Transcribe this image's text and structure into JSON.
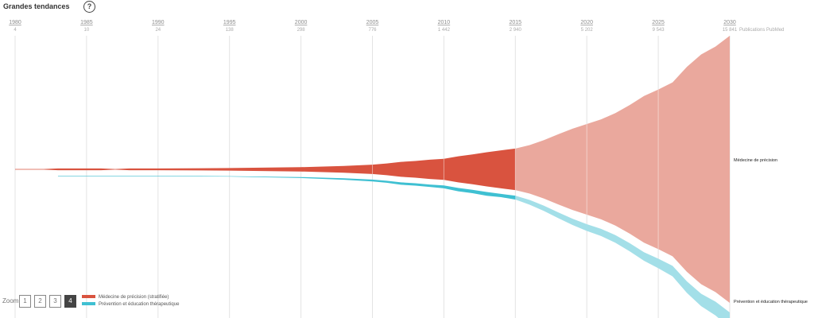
{
  "header": {
    "title": "Grandes tendances",
    "help_label": "?"
  },
  "zoom": {
    "label": "Zoom",
    "levels": [
      "1",
      "2",
      "3",
      "4"
    ],
    "active": "4"
  },
  "colors": {
    "precision_hist": "#d9533f",
    "precision_proj": "#eaa89d",
    "prevention_hist": "#3fc0d2",
    "prevention_proj": "#a3dfe8",
    "grid": "#e3e3e3",
    "tick_text": "#8c8c8c"
  },
  "chart_data": {
    "type": "area",
    "title": "Grandes tendances",
    "xlabel": "",
    "ylabel": "Publications PubMed",
    "xlim": [
      1980,
      2030
    ],
    "projection_start": 2015,
    "ticks": [
      {
        "year": "1980",
        "count": "4"
      },
      {
        "year": "1985",
        "count": "10"
      },
      {
        "year": "1990",
        "count": "24"
      },
      {
        "year": "1995",
        "count": "138"
      },
      {
        "year": "2000",
        "count": "298"
      },
      {
        "year": "2005",
        "count": "776"
      },
      {
        "year": "2010",
        "count": "1 442"
      },
      {
        "year": "2015",
        "count": "2 940"
      },
      {
        "year": "2020",
        "count": "5 202"
      },
      {
        "year": "2025",
        "count": "9 543"
      },
      {
        "year": "2030",
        "count": "15 841"
      }
    ],
    "tick_unit_label": "Publications PubMed",
    "series": [
      {
        "name": "Médecine de précision (stratifiée)",
        "label": "Médecine de précision",
        "x": [
          1980,
          1982,
          1983,
          1984,
          1985,
          1986,
          1987,
          1988,
          1990,
          1995,
          2000,
          2003,
          2005,
          2006,
          2007,
          2008,
          2009,
          2010,
          2011,
          2012,
          2013,
          2014,
          2015,
          2016,
          2017,
          2018,
          2019,
          2020,
          2021,
          2022,
          2023,
          2024,
          2025,
          2026,
          2027,
          2028,
          2029,
          2030
        ],
        "values": [
          1,
          1,
          3,
          3,
          3,
          3,
          1,
          3,
          3,
          4,
          7,
          11,
          15,
          19,
          24,
          27,
          31,
          34,
          42,
          48,
          55,
          61,
          67,
          78,
          94,
          113,
          131,
          146,
          161,
          181,
          207,
          236,
          257,
          280,
          330,
          370,
          395,
          430
        ]
      },
      {
        "name": "Prévention et éducation thérapeutique",
        "label": "Prévention et éducation thérapeutique",
        "x": [
          1983,
          1985,
          1990,
          1995,
          2000,
          2003,
          2005,
          2006,
          2007,
          2008,
          2009,
          2010,
          2011,
          2012,
          2013,
          2014,
          2015,
          2016,
          2017,
          2018,
          2019,
          2020,
          2021,
          2022,
          2023,
          2024,
          2025,
          2026,
          2027,
          2028,
          2029,
          2030
        ],
        "values": [
          1,
          1,
          1,
          1,
          2,
          3,
          4,
          4,
          5,
          5,
          5,
          6,
          7,
          7,
          8,
          7,
          8,
          10,
          11,
          12,
          13,
          14,
          15,
          16,
          17,
          18,
          20,
          22,
          24,
          26,
          29,
          32
        ]
      }
    ]
  }
}
